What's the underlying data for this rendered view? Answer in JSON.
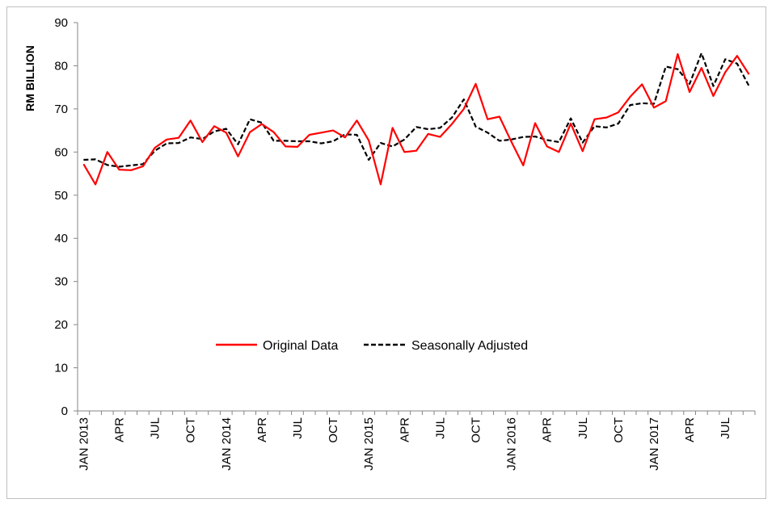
{
  "chart_data": {
    "type": "line",
    "ylabel": "RM BILLION",
    "ylim": [
      0,
      90
    ],
    "yticks": [
      0,
      10,
      20,
      30,
      40,
      50,
      60,
      70,
      80,
      90
    ],
    "x_tick_labels": [
      "JAN 2013",
      "APR",
      "JUL",
      "OCT",
      "JAN 2014",
      "APR",
      "JUL",
      "OCT",
      "JAN 2015",
      "APR",
      "JUL",
      "OCT",
      "JAN 2016",
      "APR",
      "JUL",
      "OCT",
      "JAN 2017",
      "APR",
      "JUL"
    ],
    "x_start": "2013-01",
    "x_end": "2017-09",
    "grid": false,
    "legend_position": "center",
    "colors": {
      "original": "#ff0000",
      "seasonal": "#000000"
    },
    "series": [
      {
        "name": "Original Data",
        "style": "solid",
        "values": [
          57.2,
          52.5,
          60.0,
          55.9,
          55.8,
          56.7,
          61.0,
          62.9,
          63.3,
          67.3,
          62.3,
          66.0,
          64.5,
          59.0,
          64.6,
          66.5,
          64.6,
          61.3,
          61.2,
          64.0,
          64.5,
          65.0,
          63.4,
          67.3,
          62.7,
          52.5,
          65.6,
          60.0,
          60.3,
          64.2,
          63.5,
          66.5,
          70.0,
          75.8,
          67.6,
          68.2,
          62.4,
          56.9,
          66.7,
          61.3,
          60.0,
          66.6,
          60.2,
          67.6,
          68.0,
          69.2,
          72.8,
          75.7,
          70.3,
          71.8,
          82.7,
          73.9,
          79.5,
          73.0,
          78.5,
          82.3,
          78.0
        ]
      },
      {
        "name": "Seasonally Adjusted",
        "style": "dashed",
        "values": [
          58.2,
          58.3,
          57.0,
          56.6,
          56.9,
          57.2,
          60.3,
          62.0,
          62.1,
          63.4,
          63.0,
          64.8,
          65.4,
          61.8,
          67.6,
          66.8,
          62.6,
          62.6,
          62.5,
          62.5,
          62.0,
          62.5,
          64.1,
          64.0,
          58.2,
          62.1,
          61.3,
          62.9,
          65.8,
          65.3,
          65.6,
          68.0,
          72.2,
          65.9,
          64.5,
          62.6,
          62.9,
          63.5,
          63.6,
          62.8,
          62.3,
          67.8,
          62.2,
          66.0,
          65.7,
          66.6,
          70.9,
          71.3,
          71.2,
          79.8,
          79.2,
          75.8,
          82.9,
          75.3,
          81.5,
          80.5,
          75.3
        ]
      }
    ]
  }
}
